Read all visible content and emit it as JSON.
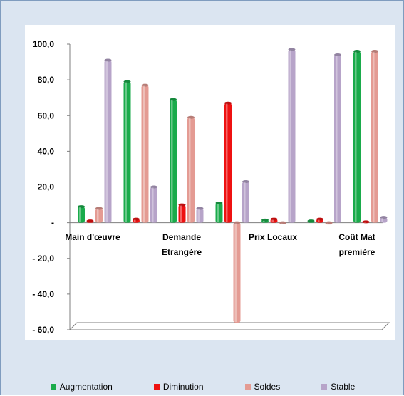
{
  "chart_data": {
    "type": "bar",
    "categories": [
      "Main d'œuvre",
      "",
      "Demande\nEtrangère",
      "",
      "Prix Locaux",
      "",
      "Coût Mat\npremière"
    ],
    "series": [
      {
        "name": "Augmentation",
        "color": "#1aab4b",
        "values": [
          9,
          79,
          69,
          11,
          1.5,
          1,
          96
        ]
      },
      {
        "name": "Diminution",
        "color": "#ee1111",
        "values": [
          1,
          2,
          10,
          67,
          2,
          2,
          0.5
        ]
      },
      {
        "name": "Soldes",
        "color": "#e49b93",
        "values": [
          8,
          77,
          59,
          -56,
          -0.5,
          -1,
          96
        ]
      },
      {
        "name": "Stable",
        "color": "#b7a4c9",
        "values": [
          91,
          20,
          8,
          23,
          97,
          94,
          3
        ]
      }
    ],
    "yticks": [
      "100,0",
      "80,0",
      "60,0",
      "40,0",
      "20,0",
      "-",
      "- 20,0",
      "- 40,0",
      "- 60,0"
    ],
    "ylim": [
      -60,
      100
    ],
    "grid": false,
    "legend_position": "bottom"
  }
}
